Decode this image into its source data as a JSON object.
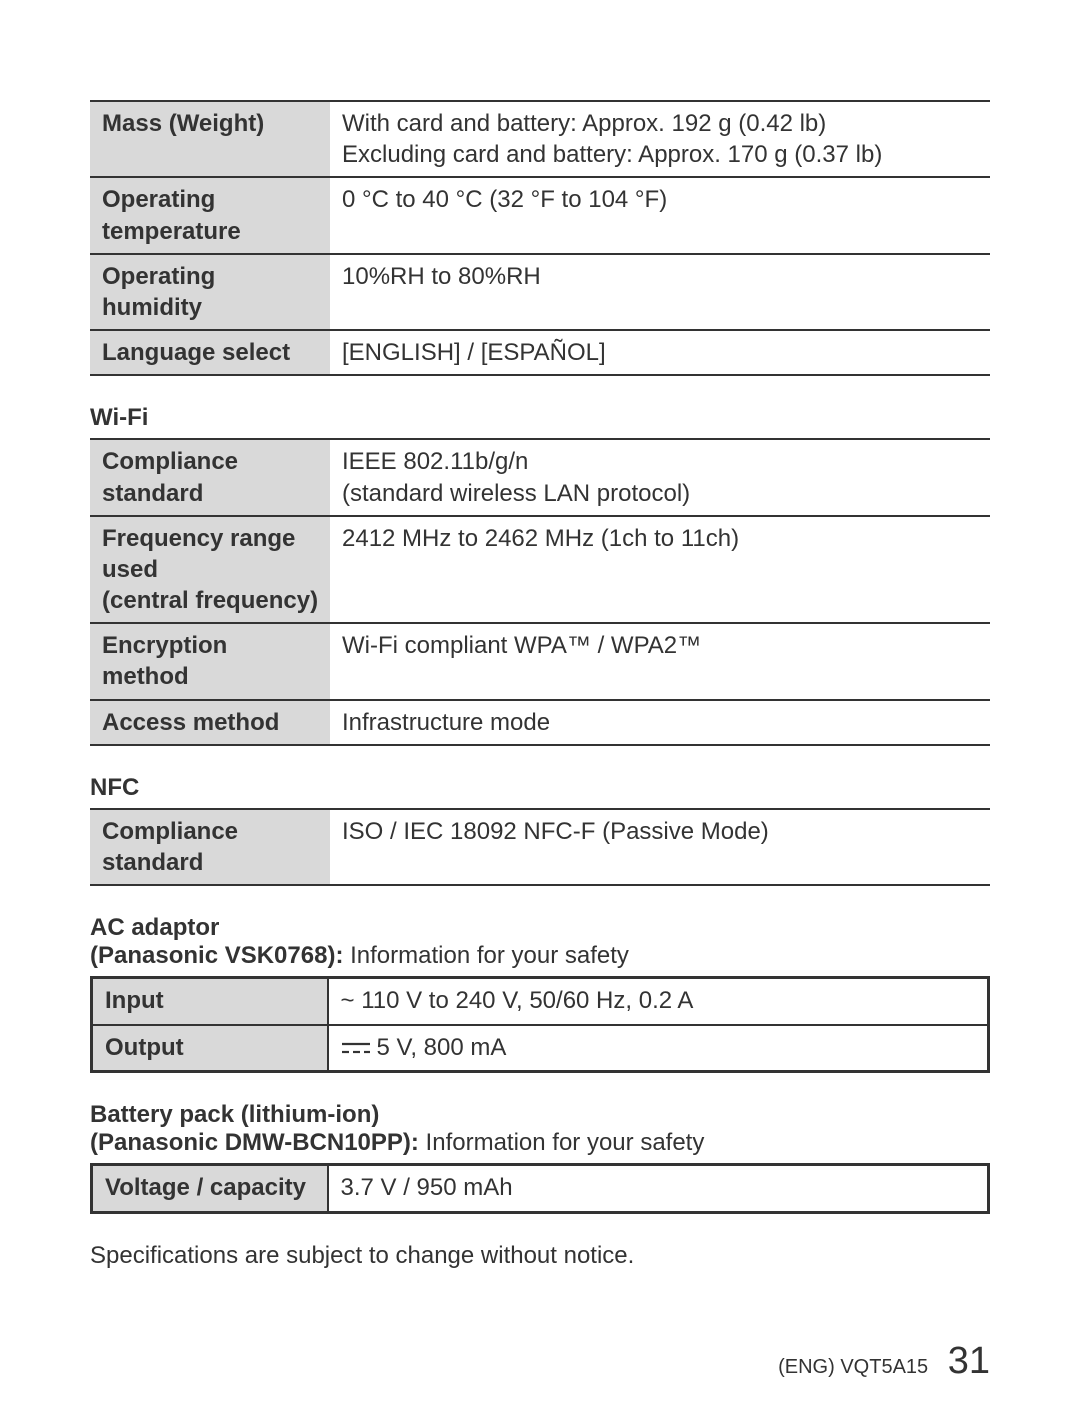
{
  "colors": {
    "label_bg": "#d9d9d9",
    "border": "#333333",
    "text": "#333333",
    "page_bg": "#ffffff"
  },
  "typography": {
    "body_fontsize_pt": 18,
    "title_fontsize_pt": 18,
    "pagenum_fontsize_pt": 28,
    "font_family": "Arial"
  },
  "table1": {
    "rows": [
      {
        "label": "Mass (Weight)",
        "value": "With card and battery: Approx. 192 g (0.42 lb)\nExcluding card and battery: Approx. 170 g (0.37 lb)"
      },
      {
        "label": "Operating temperature",
        "value": "0 °C to 40 °C (32 °F to 104 °F)"
      },
      {
        "label": "Operating humidity",
        "value": "10%RH to 80%RH"
      },
      {
        "label": "Language select",
        "value": "[ENGLISH] / [ESPAÑOL]"
      }
    ]
  },
  "wifi": {
    "title": "Wi-Fi",
    "rows": [
      {
        "label": "Compliance standard",
        "value": "IEEE 802.11b/g/n\n(standard wireless LAN protocol)"
      },
      {
        "label": "Frequency range used\n(central frequency)",
        "value": "2412 MHz to 2462 MHz (1ch to 11ch)"
      },
      {
        "label": "Encryption method",
        "value": "Wi-Fi compliant WPA™ / WPA2™"
      },
      {
        "label": "Access method",
        "value": "Infrastructure mode"
      }
    ]
  },
  "nfc": {
    "title": "NFC",
    "rows": [
      {
        "label": "Compliance standard",
        "value": "ISO / IEC 18092 NFC-F (Passive Mode)"
      }
    ]
  },
  "ac_adaptor": {
    "title": "AC adaptor",
    "subtitle_bold": "(Panasonic VSK0768):",
    "subtitle_rest": " Information for your safety",
    "rows": [
      {
        "label": "Input",
        "value_prefix": "~ ",
        "value": "110 V to 240 V, 50/60 Hz, 0.2 A",
        "symbol": "ac"
      },
      {
        "label": "Output",
        "value_prefix": "",
        "value": "5 V, 800 mA",
        "symbol": "dc"
      }
    ]
  },
  "battery": {
    "title": "Battery pack (lithium-ion)",
    "subtitle_bold": "(Panasonic DMW-BCN10PP):",
    "subtitle_rest": " Information for your safety",
    "rows": [
      {
        "label": "Voltage / capacity",
        "value": "3.7 V / 950 mAh"
      }
    ]
  },
  "note": "Specifications are subject to change without notice.",
  "footer": {
    "code": "(ENG) VQT5A15",
    "page": "31"
  }
}
